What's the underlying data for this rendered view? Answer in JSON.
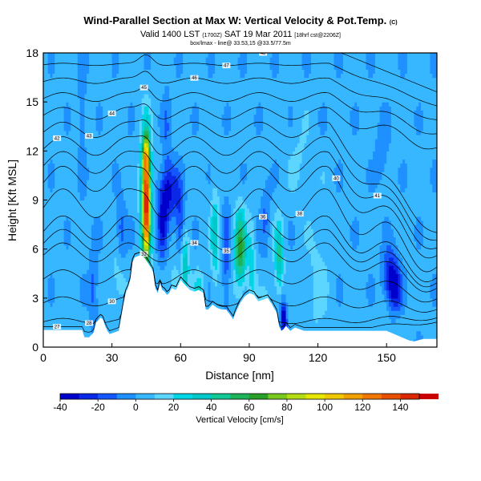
{
  "chart_data": {
    "type": "heatmap",
    "title": "Wind-Parallel Section at Max W: Vertical Velocity & Pot.Temp.",
    "title_suffix": "(C)",
    "subtitle": "Valid 1400 LST",
    "subtitle_utc": "(1700Z)",
    "subtitle_date": "SAT 19 Mar 2011",
    "subtitle_run": "[18hrf cst@2206Z]",
    "subtitle_line2": "box/lmax - line@ 33.53,15 @33.5/77.5m",
    "xlabel": "Distance [nm]",
    "ylabel": "Height [Kft MSL]",
    "xlim": [
      0,
      172
    ],
    "ylim": [
      0,
      18
    ],
    "xticks": [
      "0",
      "30",
      "60",
      "90",
      "120",
      "150"
    ],
    "yticks": [
      "0",
      "3",
      "6",
      "9",
      "12",
      "15",
      "18"
    ],
    "colorbar": {
      "label": "Vertical Velocity [cm/s]",
      "range": [
        -40,
        150
      ],
      "ticks": [
        "-40",
        "-20",
        "0",
        "20",
        "40",
        "60",
        "80",
        "100",
        "120",
        "140"
      ],
      "tick_values": [
        -40,
        -20,
        0,
        20,
        40,
        60,
        80,
        100,
        120,
        140
      ],
      "colors": [
        "#0000cc",
        "#0a28e6",
        "#1456ff",
        "#1e90ff",
        "#37b7ff",
        "#5cd6ff",
        "#00d5e5",
        "#00c8c8",
        "#14c896",
        "#1eb35a",
        "#28a028",
        "#78c81e",
        "#b4dc14",
        "#e6e600",
        "#f0c800",
        "#f0a000",
        "#f07800",
        "#e65000",
        "#dc2800",
        "#c80000"
      ],
      "color_step": 10
    },
    "series": [
      {
        "name": "terrain",
        "x": [
          0,
          17,
          18,
          20,
          22,
          23,
          25,
          26,
          27,
          28,
          29,
          33,
          34,
          35,
          36,
          37,
          38,
          39,
          40,
          42,
          44,
          46,
          48,
          49,
          50,
          51,
          52,
          53,
          54,
          55,
          56,
          58,
          60,
          62,
          64,
          66,
          68,
          70,
          71,
          72,
          74,
          76,
          78,
          80,
          82,
          83,
          84,
          85,
          86,
          88,
          90,
          92,
          94,
          96,
          98,
          100,
          102,
          103,
          104,
          105,
          106,
          108,
          110,
          112,
          114,
          116,
          120,
          125,
          130,
          135,
          140,
          145,
          150,
          155,
          160,
          162,
          166,
          168,
          172
        ],
        "y": [
          1.05,
          1.05,
          0.6,
          0.6,
          0.9,
          1.5,
          1.8,
          1.7,
          1.3,
          1.0,
          0.8,
          1.0,
          1.8,
          2.6,
          3.3,
          3.6,
          4.1,
          5.2,
          5.5,
          5.6,
          5.5,
          5.1,
          4.6,
          3.6,
          3.3,
          3.9,
          3.5,
          3.4,
          3.2,
          3.3,
          3.6,
          3.5,
          4.1,
          3.8,
          3.5,
          3.4,
          3.5,
          3.3,
          2.3,
          2.3,
          2.6,
          2.4,
          2.3,
          2.3,
          1.9,
          1.7,
          2.1,
          2.4,
          2.7,
          3.1,
          3.3,
          3.2,
          2.8,
          2.9,
          3.0,
          2.6,
          2.1,
          1.3,
          1.0,
          1.1,
          1.3,
          1.0,
          1.2,
          1.1,
          1.0,
          1.0,
          1.0,
          1.0,
          1.0,
          1.0,
          1.0,
          1.0,
          1.0,
          0.7,
          0.4,
          0.35,
          0.5,
          0.5,
          0.5
        ]
      },
      {
        "name": "theta_contours",
        "values": [
          27,
          28,
          30,
          32,
          34,
          35,
          36,
          38,
          40,
          41,
          42,
          43,
          44,
          45,
          46,
          47,
          48
        ]
      }
    ],
    "w_features": [
      {
        "x": 45,
        "y": 9.0,
        "sx": 1.4,
        "sy": 2.6,
        "amp": 150
      },
      {
        "x": 44.5,
        "y": 11.7,
        "sx": 1.1,
        "sy": 0.7,
        "amp": 40
      },
      {
        "x": 86,
        "y": 6.0,
        "sx": 1.8,
        "sy": 1.6,
        "amp": 60
      },
      {
        "x": 103,
        "y": 5.5,
        "sx": 1.3,
        "sy": 1.5,
        "amp": 40
      },
      {
        "x": 75,
        "y": 6.8,
        "sx": 1.2,
        "sy": 2.0,
        "amp": 30
      },
      {
        "x": 62,
        "y": 5.0,
        "sx": 1.2,
        "sy": 1.6,
        "amp": 35
      },
      {
        "x": 68,
        "y": 3.2,
        "sx": 1.3,
        "sy": 0.9,
        "amp": 30
      },
      {
        "x": 91,
        "y": 5.0,
        "sx": 1.2,
        "sy": 2.0,
        "amp": 20
      },
      {
        "x": 58,
        "y": 3.8,
        "sx": 1.4,
        "sy": 1.0,
        "amp": 20
      },
      {
        "x": 33,
        "y": 4.3,
        "sx": 2.0,
        "sy": 1.3,
        "amp": 15
      },
      {
        "x": 120,
        "y": 4.0,
        "sx": 3.0,
        "sy": 2.5,
        "amp": 10
      },
      {
        "x": 98,
        "y": 2.0,
        "sx": 1.5,
        "sy": 1.0,
        "amp": 20
      },
      {
        "x": 112,
        "y": 11.5,
        "sx": 3.0,
        "sy": 1.5,
        "amp": 8
      },
      {
        "x": 55,
        "y": 9.5,
        "sx": 3.0,
        "sy": 1.2,
        "amp": -35
      },
      {
        "x": 52,
        "y": 7.5,
        "sx": 1.5,
        "sy": 1.5,
        "amp": -30
      },
      {
        "x": 80,
        "y": 5.5,
        "sx": 1.3,
        "sy": 2.5,
        "amp": -20
      },
      {
        "x": 60,
        "y": 7.5,
        "sx": 1.5,
        "sy": 1.5,
        "amp": -25
      },
      {
        "x": 105,
        "y": 1.8,
        "sx": 1.0,
        "sy": 0.8,
        "amp": -45
      },
      {
        "x": 152,
        "y": 4.4,
        "sx": 2.5,
        "sy": 1.1,
        "amp": -40
      },
      {
        "x": 154,
        "y": 3.3,
        "sx": 2.0,
        "sy": 0.8,
        "amp": -25
      },
      {
        "x": 34,
        "y": 7.0,
        "sx": 1.5,
        "sy": 1.5,
        "amp": -20
      },
      {
        "x": 22,
        "y": 3.6,
        "sx": 1.3,
        "sy": 2.0,
        "amp": -18
      },
      {
        "x": 17,
        "y": 14.5,
        "sx": 1.2,
        "sy": 3.0,
        "amp": -12
      },
      {
        "x": 54,
        "y": 13.0,
        "sx": 1.2,
        "sy": 2.5,
        "amp": -12
      },
      {
        "x": 148,
        "y": 12.0,
        "sx": 2.0,
        "sy": 1.5,
        "amp": -12
      },
      {
        "x": 97,
        "y": 8.0,
        "sx": 1.5,
        "sy": 1.5,
        "amp": -15
      }
    ]
  }
}
